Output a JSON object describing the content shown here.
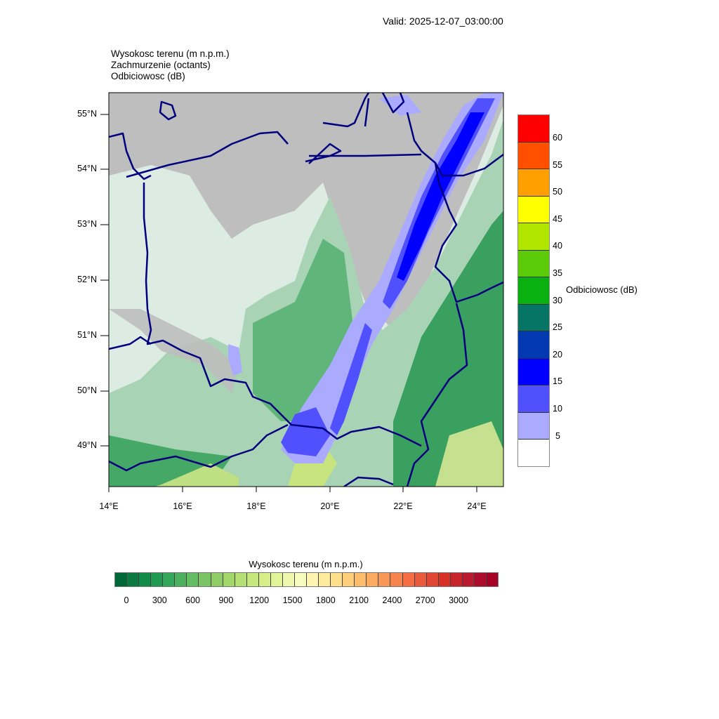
{
  "valid_label": "Valid: 2025-12-07_03:00:00",
  "header_lines": [
    "Wysokosc terenu   (m n.p.m.)",
    "Zachmurzenie   (octants)",
    "Odbiciowosc   (dB)"
  ],
  "map": {
    "lon_ticks": [
      "14°E",
      "16°E",
      "18°E",
      "20°E",
      "22°E",
      "24°E"
    ],
    "lat_ticks": [
      "55°N",
      "54°N",
      "53°N",
      "52°N",
      "51°N",
      "50°N",
      "49°N"
    ],
    "background_color": "#bebebe",
    "border_color": "#00007f"
  },
  "reflectivity_colorbar": {
    "title": "Odbiciowosc  (dB)",
    "labels": [
      "60",
      "55",
      "50",
      "45",
      "40",
      "35",
      "30",
      "25",
      "20",
      "15",
      "10",
      "5"
    ],
    "colors": [
      "#ff0000",
      "#ff5000",
      "#ffa000",
      "#ffff00",
      "#b0e600",
      "#5ccc0a",
      "#08b010",
      "#067565",
      "#0238b0",
      "#0000ff",
      "#5050ff",
      "#aaaaff",
      "#ffffff"
    ]
  },
  "terrain_colorbar": {
    "title": "Wysokosc terenu  (m n.p.m.)",
    "labels": [
      "0",
      "300",
      "600",
      "900",
      "1200",
      "1500",
      "1800",
      "2100",
      "2400",
      "2700",
      "3000"
    ],
    "colors": [
      "#006837",
      "#0a7a40",
      "#138a48",
      "#1e9a52",
      "#34a659",
      "#4cb05e",
      "#64bd63",
      "#7ac465",
      "#8fcc67",
      "#a2d76a",
      "#b4df73",
      "#c6e77d",
      "#d7ee88",
      "#e3f399",
      "#edf7ad",
      "#f6fbbe",
      "#fff4b0",
      "#feea9c",
      "#fee08b",
      "#fdcd79",
      "#fdbc6c",
      "#fdab60",
      "#f99856",
      "#f6834c",
      "#f46d43",
      "#ea5a3c",
      "#e04835",
      "#d73027",
      "#c8252b",
      "#ba1a2e",
      "#ab0d2a",
      "#a50026"
    ]
  }
}
